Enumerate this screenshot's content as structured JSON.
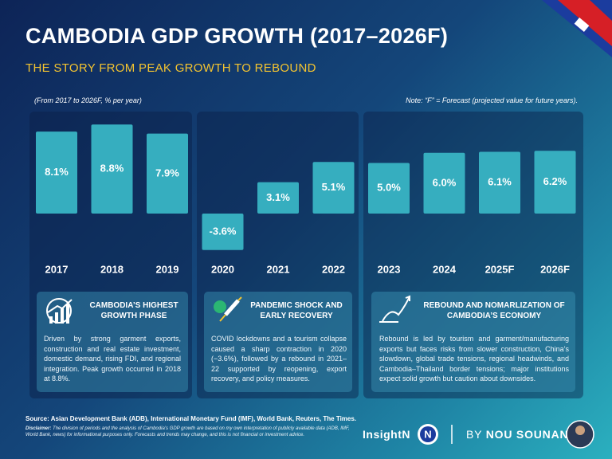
{
  "chart_data": {
    "type": "bar",
    "title": "CAMBODIA GDP GROWTH (2017–2026F)",
    "subtitle": "THE STORY FROM PEAK GROWTH TO REBOUND",
    "period_note": "(From 2017 to 2026F, % per year)",
    "forecast_note": "Note: “F” = Forecast (projected value for future years).",
    "categories": [
      "2017",
      "2018",
      "2019",
      "2020",
      "2021",
      "2022",
      "2023",
      "2024",
      "2025F",
      "2026F"
    ],
    "values": [
      8.1,
      8.8,
      7.9,
      -3.6,
      3.1,
      5.1,
      5.0,
      6.0,
      6.1,
      6.2
    ],
    "value_labels": [
      "8.1%",
      "8.8%",
      "7.9%",
      "-3.6%",
      "3.1%",
      "5.1%",
      "5.0%",
      "6.0%",
      "6.1%",
      "6.2%"
    ],
    "color": "#36aebf"
  },
  "phases": [
    {
      "title": "CAMBODIA’S HIGHEST GROWTH PHASE",
      "text": "Driven by strong garment exports, construction and real estate investment, domestic demand, rising FDI, and regional integration. Peak growth occurred in 2018 at 8.8%."
    },
    {
      "title": "PANDEMIC SHOCK AND EARLY RECOVERY",
      "text": "COVID lockdowns and a tourism collapse caused a sharp contraction in 2020 (−3.6%), followed by a rebound in 2021–22 supported by reopening, export recovery, and policy measures."
    },
    {
      "title": "REBOUND AND NOMARLIZATION OF CAMBODIA’S ECONOMY",
      "text": "Rebound is led by tourism and garment/manufacturing exports but faces risks from slower construction, China’s slowdown, global trade tensions, regional headwinds, and Cambodia–Thailand border tensions; major institutions expect solid growth but caution about downsides."
    }
  ],
  "source": "Source: Asian Development Bank (ADB), International Monetary Fund (IMF), World Bank, Reuters, The Times.",
  "disclaimer_label": "Disclaimer:",
  "disclaimer": "The division of periods and the analysis of Cambodia’s GDP growth are based on my own interpretation of publicly available data (ADB, IMF, World Bank, news) for informational purposes only. Forecasts and trends may change, and this is not financial or investment advice.",
  "brand": "InsightN",
  "logo": "N",
  "byline": "BY",
  "author": "NOU SOUNAN"
}
